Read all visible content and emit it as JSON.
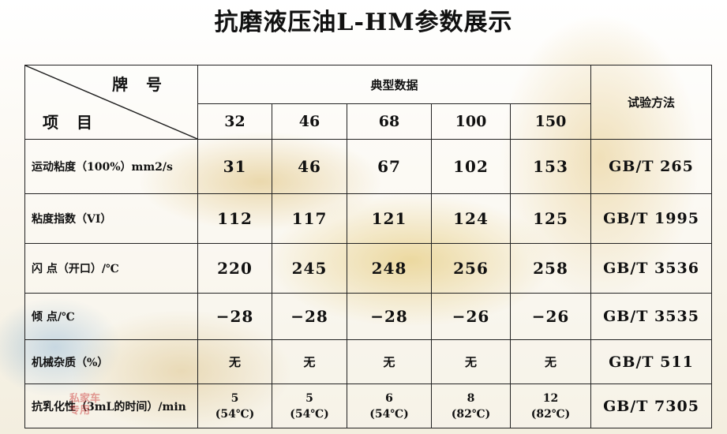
{
  "title": "抗磨液压油L-HM参数展示",
  "header": {
    "grade_label": "牌 号",
    "item_label": "项 目",
    "typical_data": "典型数据",
    "test_method": "试验方法",
    "grades": [
      "32",
      "46",
      "68",
      "100",
      "150"
    ]
  },
  "rows": [
    {
      "label": "运动粘度（100%）mm2/s",
      "values": [
        "31",
        "46",
        "67",
        "102",
        "153"
      ],
      "method": "GB/T 265"
    },
    {
      "label": "粘度指数（VI）",
      "values": [
        "112",
        "117",
        "121",
        "124",
        "125"
      ],
      "method": "GB/T 1995"
    },
    {
      "label": "闪 点（开口）/℃",
      "values": [
        "220",
        "245",
        "248",
        "256",
        "258"
      ],
      "method": "GB/T 3536"
    },
    {
      "label": "倾 点/℃",
      "values": [
        "−28",
        "−28",
        "−28",
        "−26",
        "−26"
      ],
      "method": "GB/T 3535"
    },
    {
      "label": "机械杂质（%）",
      "values": [
        "无",
        "无",
        "无",
        "无",
        "无"
      ],
      "method": "GB/T 511"
    },
    {
      "label": "抗乳化性（3mL的时间）/min",
      "values": [
        {
          "main": "5",
          "sub": "(54℃)"
        },
        {
          "main": "5",
          "sub": "(54℃)"
        },
        {
          "main": "6",
          "sub": "(54℃)"
        },
        {
          "main": "8",
          "sub": "(82℃)"
        },
        {
          "main": "12",
          "sub": "(82℃)"
        }
      ],
      "method": "GB/T 7305"
    }
  ],
  "watermark": [
    "私家车",
    "专用"
  ]
}
